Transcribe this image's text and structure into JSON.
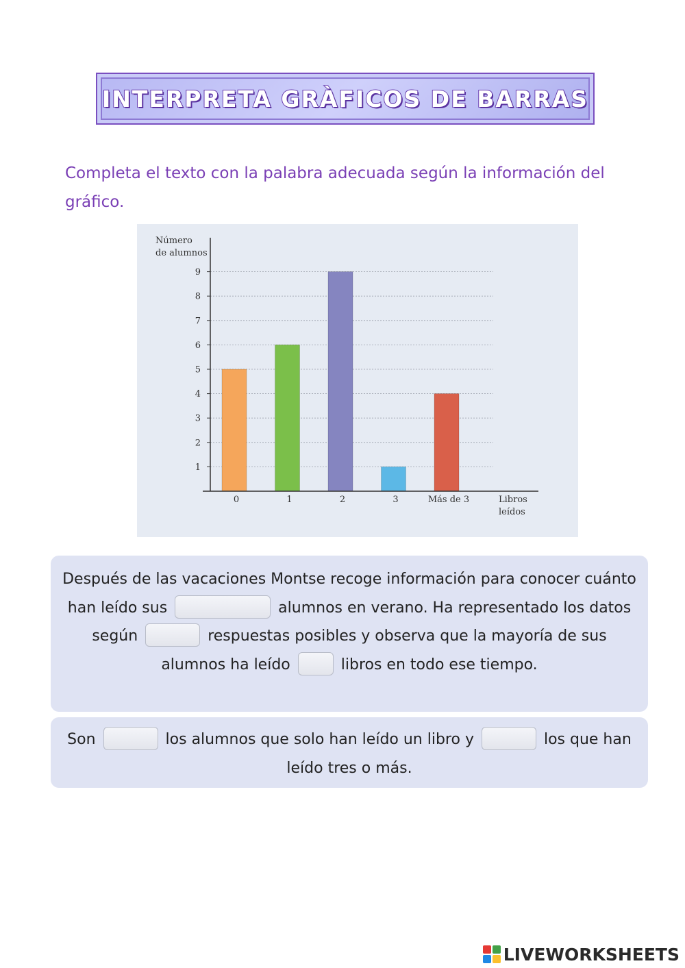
{
  "page_title": "INTERPRETA GRÀFICOS DE BARRAS",
  "instruction": "Completa el texto con la palabra adecuada según la información del gráfico.",
  "chart_data": {
    "type": "bar",
    "ylabel_line1": "Número",
    "ylabel_line2": "de alumnos",
    "xlabel_line1": "Libros",
    "xlabel_line2": "leídos",
    "categories": [
      "0",
      "1",
      "2",
      "3",
      "Más de 3"
    ],
    "values": [
      5,
      6,
      9,
      1,
      4
    ],
    "colors": [
      "#f5a65b",
      "#7bbf4a",
      "#8585c0",
      "#5cb8e6",
      "#d9604a"
    ],
    "yticks": [
      "1",
      "2",
      "3",
      "4",
      "5",
      "6",
      "7",
      "8",
      "9"
    ],
    "ylim": [
      0,
      9
    ],
    "grid": true
  },
  "panel1": {
    "seg1": "Después de las vacaciones Montse recoge información para conocer cuánto han leído sus",
    "seg2": "alumnos en verano. Ha representado los datos según",
    "seg3": "respuestas posibles y observa que la mayoría de sus alumnos ha leído",
    "seg4": "libros en todo ese tiempo."
  },
  "panel2": {
    "seg1": "Son",
    "seg2": "los alumnos que solo han leído un libro y",
    "seg3": "los que han leído tres o más."
  },
  "footer": {
    "brand": "LIVEWORKSHEETS",
    "logo_colors": [
      "#e53935",
      "#43a047",
      "#1e88e5",
      "#fbc02d"
    ]
  }
}
